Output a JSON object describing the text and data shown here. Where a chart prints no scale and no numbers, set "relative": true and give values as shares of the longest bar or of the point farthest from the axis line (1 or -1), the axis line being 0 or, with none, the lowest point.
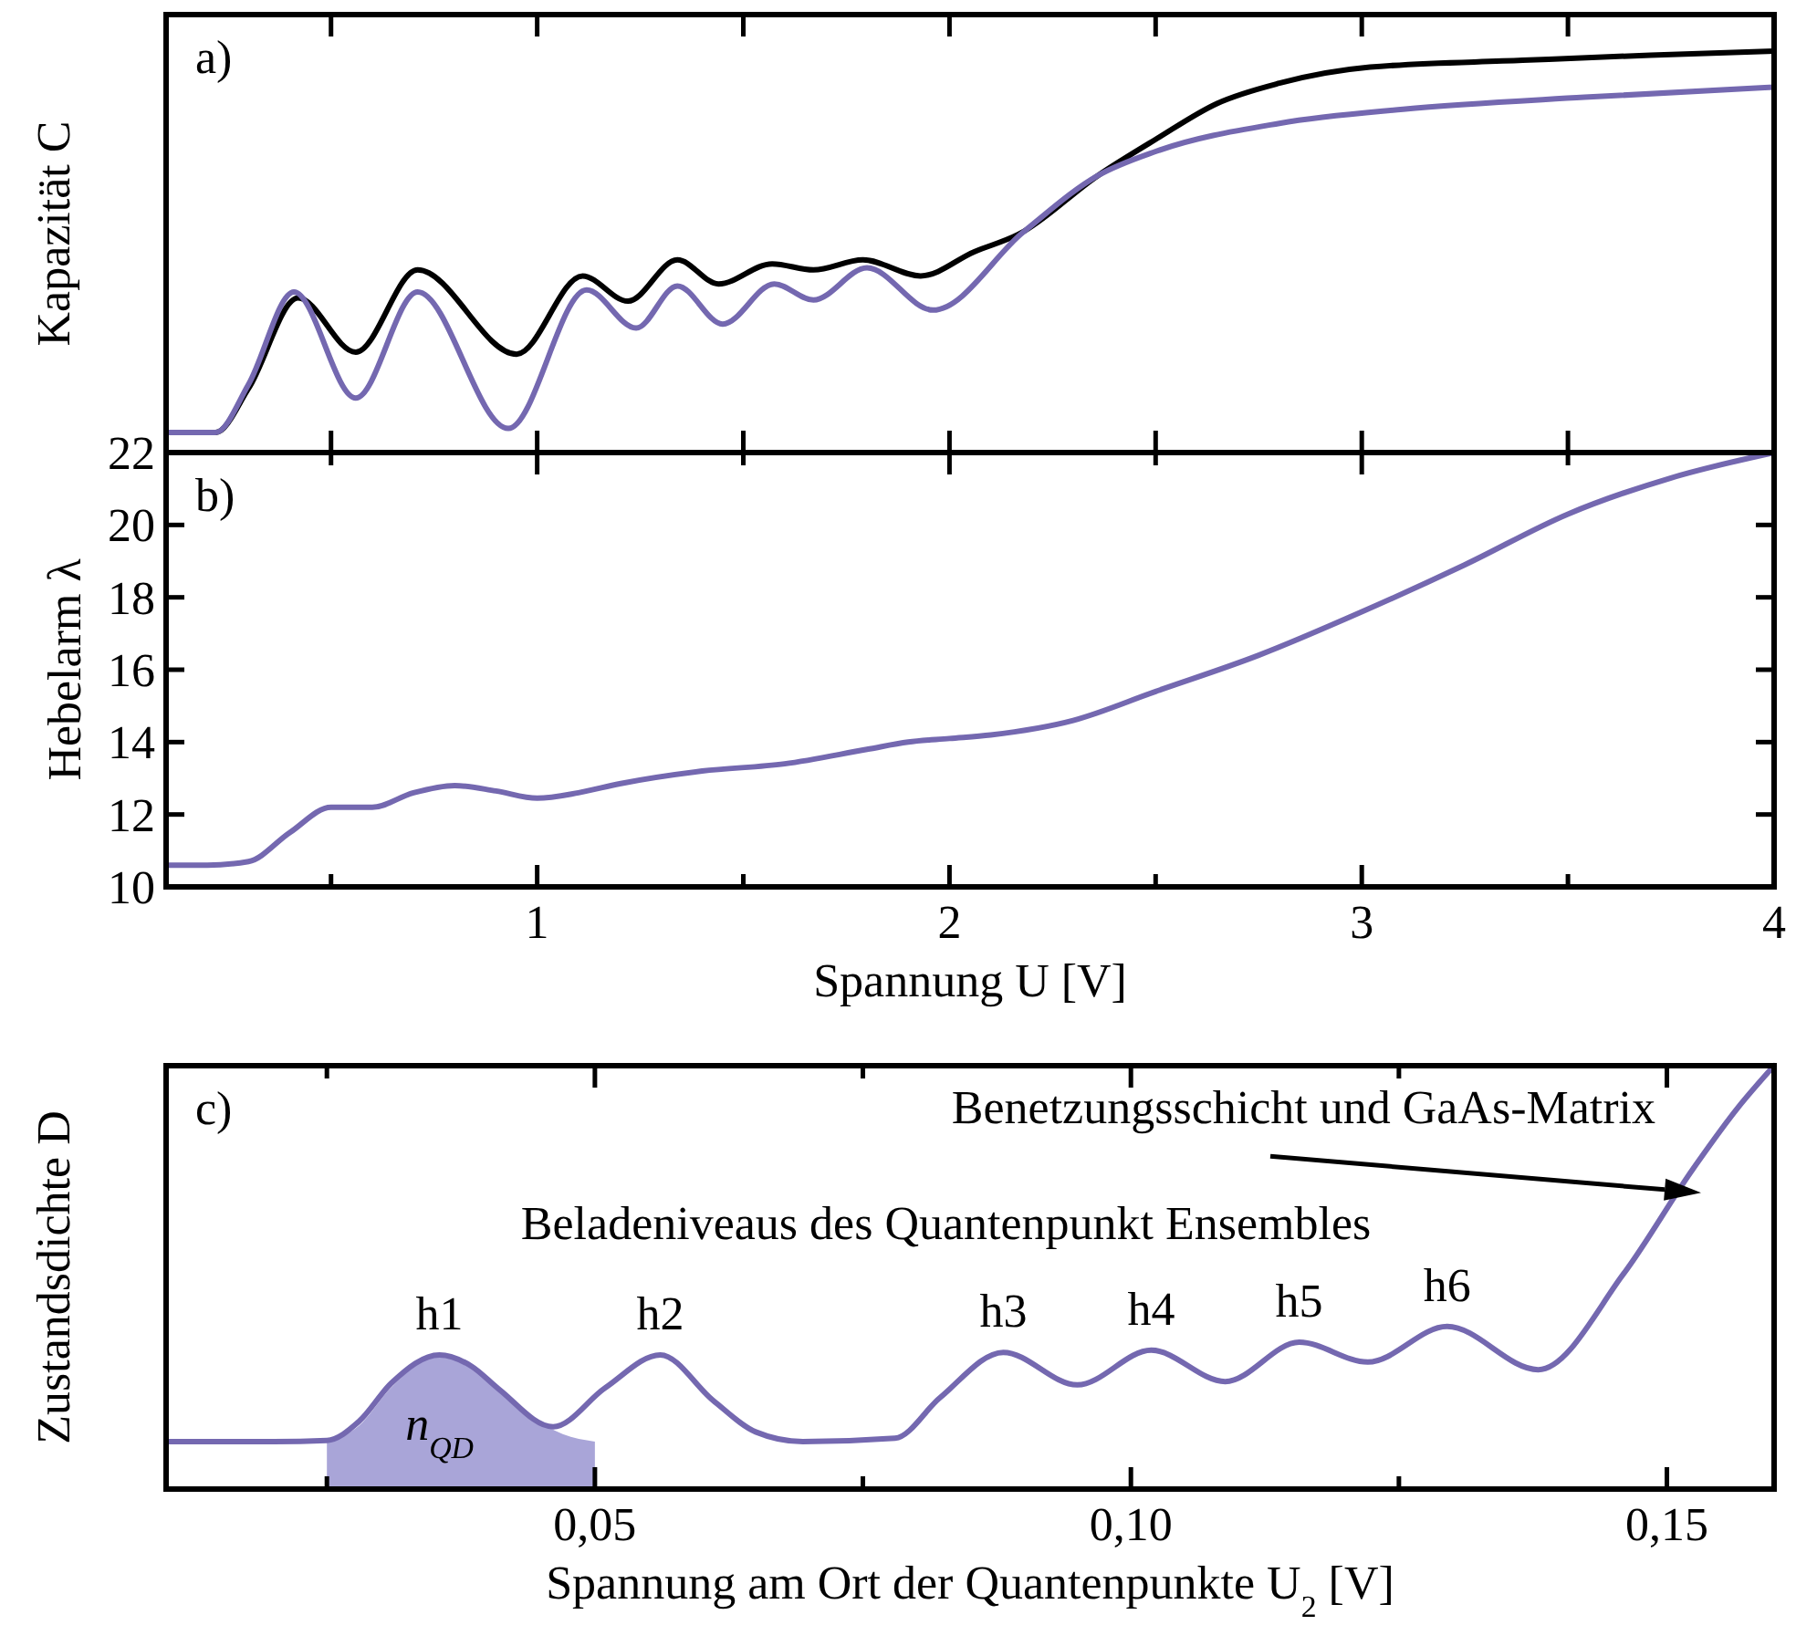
{
  "chart_data": [
    {
      "type": "line",
      "ylabel": "Kapazität C",
      "relative": true,
      "tick_labels": false,
      "xlim": [
        0.1,
        4
      ],
      "xticks": [
        {
          "value": 0.5,
          "label": null
        },
        {
          "value": 1,
          "label": null
        },
        {
          "value": 1.5,
          "label": null
        },
        {
          "value": 2,
          "label": null
        },
        {
          "value": 2.5,
          "label": null
        },
        {
          "value": 3,
          "label": null
        },
        {
          "value": 3.5,
          "label": null
        },
        {
          "value": 4,
          "label": null
        }
      ],
      "annotations": [
        "a)"
      ],
      "series": [
        {
          "color": "#000000",
          "x": [
            0.1,
            0.22,
            0.3,
            0.42,
            0.56,
            0.71,
            0.95,
            1.11,
            1.22,
            1.34,
            1.44,
            1.57,
            1.67,
            1.79,
            1.93,
            2.06,
            2.17,
            2.36,
            2.5,
            2.65,
            2.8,
            3.02,
            3.39,
            3.7,
            4.0
          ],
          "values": [
            0.05,
            0.05,
            0.16,
            0.385,
            0.25,
            0.455,
            0.245,
            0.44,
            0.377,
            0.48,
            0.42,
            0.47,
            0.455,
            0.48,
            0.44,
            0.5,
            0.545,
            0.69,
            0.78,
            0.87,
            0.92,
            0.96,
            0.977,
            0.99,
            1.0
          ]
        },
        {
          "color": "#7468b0",
          "x": [
            0.1,
            0.22,
            0.3,
            0.41,
            0.56,
            0.71,
            0.93,
            1.12,
            1.24,
            1.34,
            1.45,
            1.575,
            1.67,
            1.8,
            1.96,
            2.18,
            2.36,
            2.5,
            2.8,
            3.1,
            3.54,
            4.0
          ],
          "values": [
            0.05,
            0.05,
            0.17,
            0.4,
            0.136,
            0.4,
            0.06,
            0.405,
            0.31,
            0.415,
            0.32,
            0.42,
            0.38,
            0.46,
            0.355,
            0.55,
            0.69,
            0.75,
            0.82,
            0.855,
            0.885,
            0.91
          ]
        }
      ]
    },
    {
      "type": "line",
      "ylabel": "Hebelarm λ",
      "xlabel": "Spannung U [V]",
      "xlim": [
        0.1,
        4
      ],
      "ylim": [
        10,
        22
      ],
      "yticks": [
        10,
        12,
        14,
        16,
        18,
        20,
        22
      ],
      "xticks": [
        {
          "value": 0.5,
          "label": null
        },
        1,
        {
          "value": 1.5,
          "label": null
        },
        2,
        {
          "value": 2.5,
          "label": null
        },
        3,
        {
          "value": 3.5,
          "label": null
        },
        4
      ],
      "annotations": [
        "b)"
      ],
      "series": [
        {
          "color": "#7468b0",
          "x": [
            0.1,
            0.2,
            0.3,
            0.4,
            0.5,
            0.6,
            0.7,
            0.8,
            0.9,
            1.0,
            1.1,
            1.2,
            1.4,
            1.6,
            1.8,
            1.9,
            2.0,
            2.1,
            2.3,
            2.5,
            2.75,
            3.0,
            3.25,
            3.5,
            3.75,
            4.0
          ],
          "values": [
            10.6,
            10.6,
            10.7,
            11.5,
            12.2,
            12.2,
            12.6,
            12.8,
            12.65,
            12.45,
            12.6,
            12.85,
            13.2,
            13.4,
            13.8,
            14.0,
            14.1,
            14.2,
            14.6,
            15.4,
            16.4,
            17.6,
            18.9,
            20.3,
            21.3,
            22
          ]
        }
      ]
    },
    {
      "type": "line",
      "ylabel": "Zustandsdichte D",
      "xlabel": "Spannung am Ort der Quantenpunkte U$_{2}$ [V]",
      "relative": true,
      "tick_labels": "x",
      "xlim": [
        0.01,
        0.16
      ],
      "xticks": [
        {
          "value": 0.025,
          "label": null
        },
        {
          "value": 0.05,
          "label": "0,05"
        },
        {
          "value": 0.075,
          "label": null
        },
        {
          "value": 0.1,
          "label": "0,10"
        },
        {
          "value": 0.125,
          "label": null
        },
        {
          "value": 0.15,
          "label": "0,15"
        }
      ],
      "annotations": [
        "c)",
        "Beladeniveaus des Quantenpunkt Ensembles",
        "Benetzungsschicht und GaAs-Matrix",
        {
          "text": "h1",
          "x": 0.0355,
          "y": 0.317
        },
        {
          "text": "h2",
          "x": 0.0561,
          "y": 0.317
        },
        {
          "text": "h3",
          "x": 0.0881,
          "y": 0.323
        },
        {
          "text": "h4",
          "x": 0.1019,
          "y": 0.328
        },
        {
          "text": "h5",
          "x": 0.1157,
          "y": 0.347
        },
        {
          "text": "h6",
          "x": 0.1295,
          "y": 0.384
        }
      ],
      "series": [
        {
          "type": "area",
          "name": "n$_{QD}$",
          "color": "#a9a5d8",
          "x": [
            0.025,
            0.028,
            0.031,
            0.0355,
            0.0385,
            0.041,
            0.044,
            0.047,
            0.05
          ],
          "values": [
            0.112,
            0.15,
            0.24,
            0.317,
            0.29,
            0.23,
            0.17,
            0.13,
            0.112
          ]
        },
        {
          "color": "#7468b0",
          "x": [
            0.01,
            0.02,
            0.025,
            0.028,
            0.031,
            0.0355,
            0.0385,
            0.041,
            0.0461,
            0.051,
            0.0561,
            0.061,
            0.065,
            0.0694,
            0.078,
            0.0822,
            0.0881,
            0.095,
            0.1019,
            0.1088,
            0.1157,
            0.1221,
            0.1295,
            0.138,
            0.146,
            0.1524,
            0.1566,
            0.16
          ],
          "values": [
            0.112,
            0.112,
            0.115,
            0.16,
            0.25,
            0.317,
            0.29,
            0.237,
            0.147,
            0.24,
            0.317,
            0.21,
            0.135,
            0.112,
            0.12,
            0.216,
            0.323,
            0.246,
            0.328,
            0.254,
            0.347,
            0.3,
            0.384,
            0.282,
            0.51,
            0.755,
            0.9,
            1.0
          ]
        }
      ]
    }
  ]
}
